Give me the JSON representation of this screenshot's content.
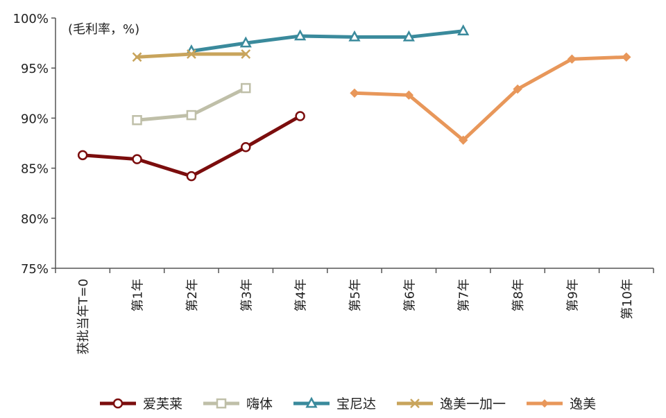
{
  "chart_data": {
    "type": "line",
    "unit_label": "(毛利率，%)",
    "categories": [
      "获批当年T=0",
      "第1年",
      "第2年",
      "第3年",
      "第4年",
      "第5年",
      "第6年",
      "第7年",
      "第8年",
      "第9年",
      "第10年"
    ],
    "y_ticks": [
      "75%",
      "80%",
      "85%",
      "90%",
      "95%",
      "100%"
    ],
    "ylim": [
      75,
      100
    ],
    "grid": false,
    "legend_position": "bottom",
    "series": [
      {
        "name": "爱芙莱",
        "color": "#7b0d0d",
        "marker": "circle",
        "values": [
          86.3,
          85.9,
          84.2,
          87.1,
          90.2,
          null,
          null,
          null,
          null,
          null,
          null
        ]
      },
      {
        "name": "嗨体",
        "color": "#bfbfa8",
        "marker": "square",
        "values": [
          null,
          89.8,
          90.3,
          93.0,
          null,
          null,
          null,
          null,
          null,
          null,
          null
        ]
      },
      {
        "name": "宝尼达",
        "color": "#3a8a9c",
        "marker": "triangle",
        "values": [
          null,
          null,
          96.7,
          97.5,
          98.2,
          98.1,
          98.1,
          98.7,
          null,
          null,
          null
        ]
      },
      {
        "name": "逸美一加一",
        "color": "#c8a45c",
        "marker": "x",
        "values": [
          null,
          96.1,
          96.4,
          96.4,
          null,
          null,
          null,
          null,
          null,
          null,
          null
        ]
      },
      {
        "name": "逸美",
        "color": "#e8975a",
        "marker": "diamond",
        "values": [
          null,
          null,
          null,
          null,
          null,
          92.5,
          92.3,
          87.8,
          92.9,
          95.9,
          96.1
        ]
      }
    ]
  }
}
